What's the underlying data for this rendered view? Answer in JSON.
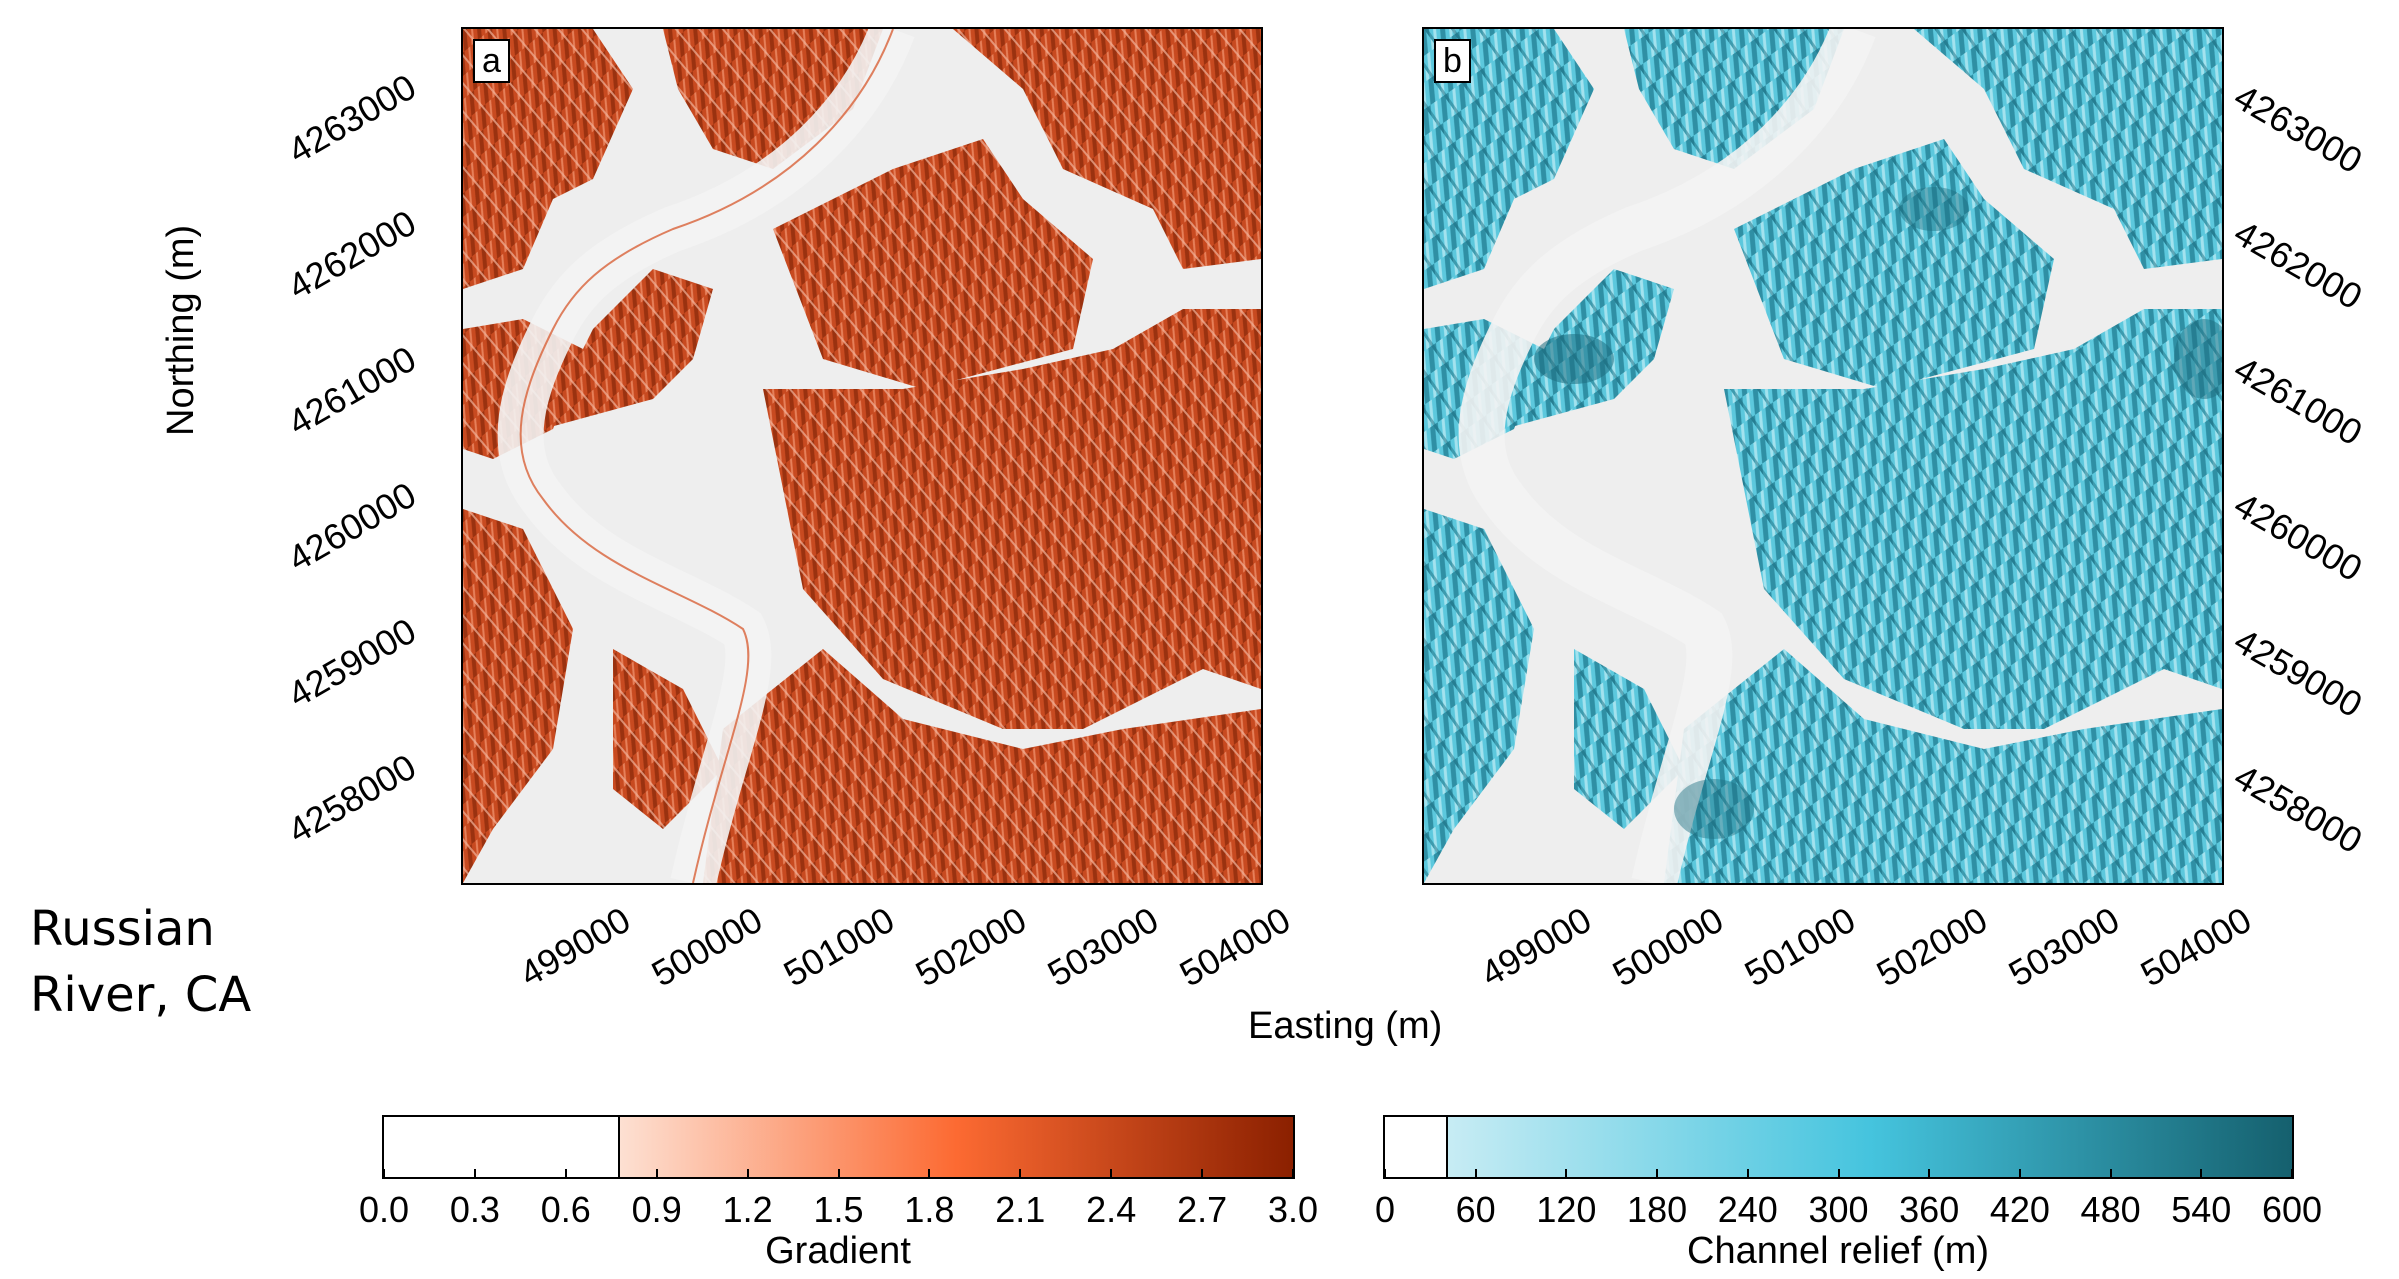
{
  "site_label": [
    "Russian",
    "River, CA"
  ],
  "axes": {
    "xlabel": "Easting (m)",
    "ylabel": "Northing (m)",
    "easting_ticks": [
      "499000",
      "500000",
      "501000",
      "502000",
      "503000",
      "504000"
    ],
    "northing_ticks": [
      "4263000",
      "4262000",
      "4261000",
      "4260000",
      "4259000",
      "4258000"
    ]
  },
  "panels": [
    {
      "letter": "a",
      "layer": "Gradient",
      "color": "#c84a20"
    },
    {
      "letter": "b",
      "layer": "Channel relief (m)",
      "color": "#3fb8d2"
    }
  ],
  "colorbars": [
    {
      "title": "Gradient",
      "ticks": [
        "0.0",
        "0.3",
        "0.6",
        "0.9",
        "1.2",
        "1.5",
        "1.8",
        "2.1",
        "2.4",
        "2.7",
        "3.0"
      ],
      "range": [
        0.0,
        3.0
      ],
      "blank_until": 0.78,
      "colors": [
        "#fde0d2",
        "#fc6a32",
        "#8b2000"
      ]
    },
    {
      "title": "Channel relief (m)",
      "ticks": [
        "0",
        "60",
        "120",
        "180",
        "240",
        "300",
        "360",
        "420",
        "480",
        "540",
        "600"
      ],
      "range": [
        0,
        600
      ],
      "blank_until": 42,
      "colors": [
        "#c7ecf4",
        "#45c4de",
        "#15606e"
      ]
    }
  ]
}
